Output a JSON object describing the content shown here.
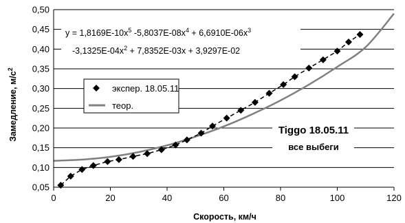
{
  "chart_data": {
    "type": "scatter",
    "xlabel": "Скорость, км/ч",
    "ylabel": "Замедление, м/с",
    "ylabel_sup": "2",
    "xlim": [
      0,
      120
    ],
    "ylim": [
      0.05,
      0.5
    ],
    "x_ticks": [
      "0",
      "20",
      "40",
      "60",
      "80",
      "100",
      "120"
    ],
    "y_ticks": [
      "0,05",
      "0,10",
      "0,15",
      "0,20",
      "0,25",
      "0,30",
      "0,35",
      "0,40",
      "0,45",
      "0,50"
    ],
    "grid": "horizontal",
    "legend_position": "left",
    "equation": {
      "line1": [
        "y = 1,8169E-10x",
        "5",
        " -5,8037E-08x",
        "4",
        " + 6,6910E-06x",
        "3"
      ],
      "line2": [
        "-3,1325E-04x",
        "2",
        " + 7,8352E-03x + 3,9297E-02"
      ]
    },
    "annotation": {
      "title": "Tiggo 18.05.11",
      "subtitle": "все выбеги"
    },
    "series": [
      {
        "name": "экспер. 18.05.11",
        "marker": "diamond",
        "color": "#000000",
        "x": [
          2.5,
          6,
          10,
          14,
          19,
          23,
          28,
          33,
          38,
          43,
          47,
          52,
          56,
          61,
          66,
          71,
          76,
          81,
          85,
          90,
          95,
          100,
          104,
          108
        ],
        "y": [
          0.055,
          0.078,
          0.095,
          0.105,
          0.115,
          0.12,
          0.128,
          0.135,
          0.145,
          0.157,
          0.17,
          0.187,
          0.205,
          0.225,
          0.245,
          0.265,
          0.288,
          0.31,
          0.33,
          0.352,
          0.373,
          0.395,
          0.418,
          0.437
        ]
      },
      {
        "name": "теор.",
        "line": "solid",
        "color": "#808080",
        "x": [
          0,
          10,
          20,
          30,
          40,
          50,
          60,
          70,
          80,
          90,
          100,
          110,
          120
        ],
        "y": [
          0.117,
          0.12,
          0.127,
          0.139,
          0.156,
          0.178,
          0.204,
          0.235,
          0.27,
          0.31,
          0.355,
          0.405,
          0.49
        ]
      }
    ]
  }
}
